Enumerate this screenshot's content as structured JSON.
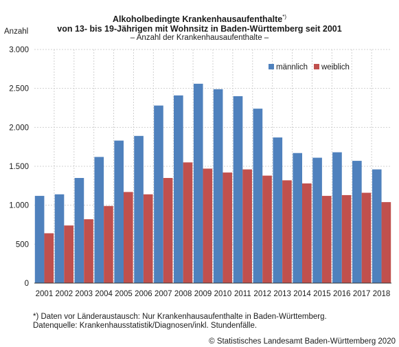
{
  "chart_data": {
    "type": "bar",
    "title_main": "Alkoholbedingte Krankenhausaufenthalte",
    "title_marker": "*)",
    "title_line2": "von 13- bis 19-Jährigen mit Wohnsitz in Baden-Württemberg seit 2001",
    "subtitle": "– Anzahl der Krankenhausaufenthalte –",
    "ylabel": "Anzahl",
    "ylim": [
      0,
      3000
    ],
    "yticks": [
      0,
      500,
      1000,
      1500,
      2000,
      2500,
      3000
    ],
    "ytick_labels": [
      "0",
      "500",
      "1.000",
      "1.500",
      "2.000",
      "2.500",
      "3.000"
    ],
    "grid": true,
    "legend_position": "top-right",
    "categories": [
      "2001",
      "2002",
      "2003",
      "2004",
      "2005",
      "2006",
      "2007",
      "2008",
      "2009",
      "2010",
      "2011",
      "2012",
      "2013",
      "2014",
      "2015",
      "2016",
      "2017",
      "2018"
    ],
    "series": [
      {
        "name": "männlich",
        "color": "#4f81bd",
        "values": [
          1120,
          1140,
          1350,
          1620,
          1830,
          1890,
          2280,
          2410,
          2560,
          2490,
          2400,
          2240,
          1870,
          1670,
          1610,
          1680,
          1570,
          1460
        ]
      },
      {
        "name": "weiblich",
        "color": "#c0504d",
        "values": [
          640,
          740,
          820,
          990,
          1170,
          1140,
          1350,
          1550,
          1470,
          1420,
          1460,
          1380,
          1320,
          1280,
          1120,
          1130,
          1160,
          1040
        ]
      }
    ]
  },
  "footnotes": {
    "line1": "*) Daten vor Länderaustausch: Nur Krankenhausaufenthalte in Baden-Württemberg.",
    "line2": "Datenquelle: Krankenhausstatistik/Diagnosen/inkl. Stundenfälle."
  },
  "copyright": "© Statistisches Landesamt Baden-Württemberg 2020"
}
